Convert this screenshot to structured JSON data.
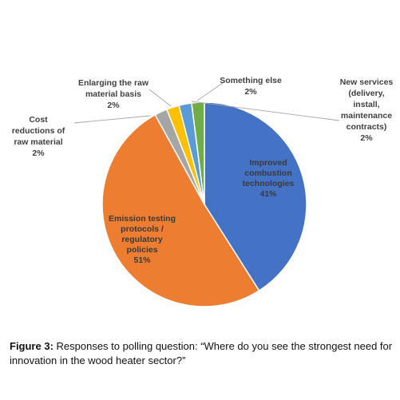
{
  "chart_data": {
    "type": "pie",
    "slices": [
      {
        "key": "combustion",
        "label": [
          "Improved",
          "combustion",
          "technologies"
        ],
        "value": 41,
        "value_text": "41%",
        "color": "#4472C4"
      },
      {
        "key": "emission",
        "label": [
          "Emission testing",
          "protocols /",
          "regulatory",
          "policies"
        ],
        "value": 51,
        "value_text": "51%",
        "color": "#ED7D31"
      },
      {
        "key": "cost",
        "label": [
          "Cost",
          "reductions of",
          "raw material"
        ],
        "value": 2,
        "value_text": "2%",
        "color": "#A5A5A5"
      },
      {
        "key": "enlarging",
        "label": [
          "Enlarging the raw",
          "material basis"
        ],
        "value": 2,
        "value_text": "2%",
        "color": "#FFC000"
      },
      {
        "key": "new_services",
        "label": [
          "New services",
          "(delivery,",
          "install,",
          "maintenance",
          "contracts)"
        ],
        "value": 2,
        "value_text": "2%",
        "color": "#5B9BD5"
      },
      {
        "key": "something_else",
        "label": [
          "Something else"
        ],
        "value": 2,
        "value_text": "2%",
        "color": "#70AD47"
      }
    ]
  },
  "caption": {
    "label": "Figure 3:",
    "text": " Responses to polling question: “Where do you see the strongest need for innovation in the wood heater sector?”"
  }
}
